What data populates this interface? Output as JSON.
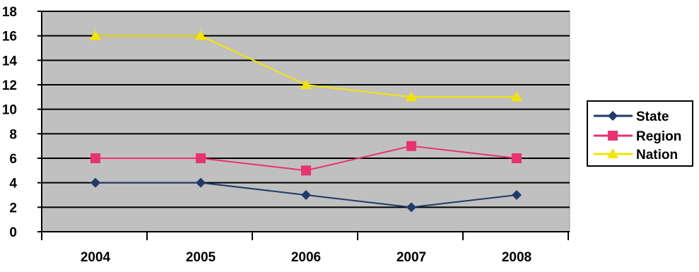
{
  "chart_data": {
    "type": "line",
    "title": "",
    "xlabel": "",
    "ylabel": "",
    "categories": [
      "2004",
      "2005",
      "2006",
      "2007",
      "2008"
    ],
    "ylim": [
      0,
      18
    ],
    "y_ticks": [
      0,
      2,
      4,
      6,
      8,
      10,
      12,
      14,
      16,
      18
    ],
    "grid": true,
    "legend_position": "right",
    "plot_background": "#c0c0c0",
    "series": [
      {
        "name": "State",
        "values": [
          4,
          4,
          3,
          2,
          3
        ],
        "color": "#1f3a68",
        "marker": "diamond"
      },
      {
        "name": "Region",
        "values": [
          6,
          6,
          5,
          7,
          6
        ],
        "color": "#e8336f",
        "marker": "square"
      },
      {
        "name": "Nation",
        "values": [
          16,
          16,
          12,
          11,
          11
        ],
        "color": "#f5e400",
        "marker": "triangle"
      }
    ]
  }
}
